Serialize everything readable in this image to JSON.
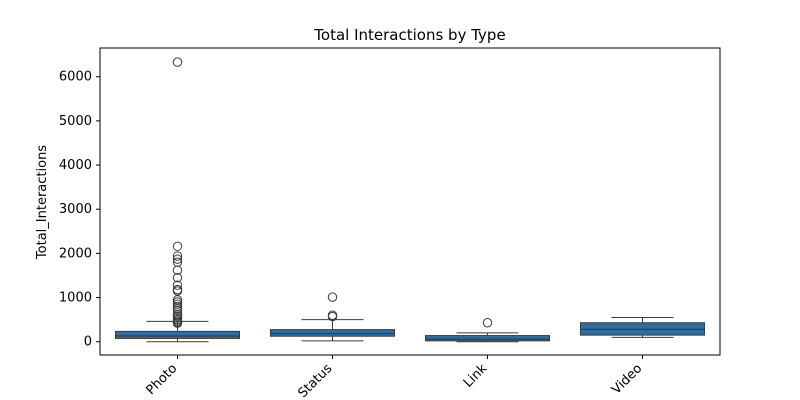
{
  "chart_data": {
    "type": "box",
    "title": "Total Interactions by Type",
    "xlabel": "",
    "ylabel": "Total_Interactions",
    "ylim": [
      -300,
      6650
    ],
    "yticks": [
      0,
      1000,
      2000,
      3000,
      4000,
      5000,
      6000
    ],
    "categories": [
      "Photo",
      "Status",
      "Link",
      "Video"
    ],
    "box_color": "#2f6ea3",
    "edge_color": "#3a3a3a",
    "boxes": [
      {
        "category": "Photo",
        "whisker_low": 0,
        "q1": 75,
        "median": 130,
        "q3": 235,
        "whisker_high": 460,
        "outliers": [
          6330,
          2160,
          1940,
          1870,
          1800,
          1620,
          1450,
          1280,
          1180,
          1150,
          950,
          900,
          850,
          800,
          750,
          700,
          620,
          580,
          540,
          500,
          470,
          440,
          420
        ]
      },
      {
        "category": "Status",
        "whisker_low": 20,
        "q1": 125,
        "median": 185,
        "q3": 275,
        "whisker_high": 500,
        "outliers": [
          1010,
          600,
          570
        ]
      },
      {
        "category": "Link",
        "whisker_low": 0,
        "q1": 20,
        "median": 60,
        "q3": 140,
        "whisker_high": 200,
        "outliers": [
          430
        ]
      },
      {
        "category": "Video",
        "whisker_low": 100,
        "q1": 150,
        "median": 280,
        "q3": 430,
        "whisker_high": 550,
        "outliers": []
      }
    ]
  }
}
